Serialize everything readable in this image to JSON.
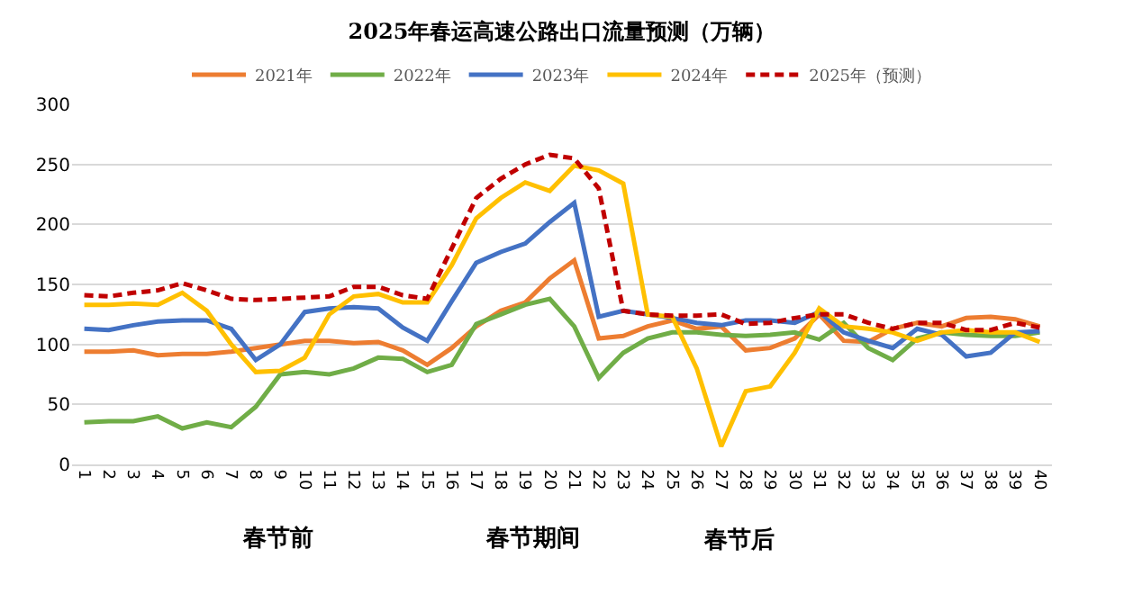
{
  "chart_data": {
    "type": "line",
    "title": "2025年春运高速公路出口流量预测（万辆）",
    "categories": [
      "1",
      "2",
      "3",
      "4",
      "5",
      "6",
      "7",
      "8",
      "9",
      "10",
      "11",
      "12",
      "13",
      "14",
      "15",
      "16",
      "17",
      "18",
      "19",
      "20",
      "21",
      "22",
      "23",
      "24",
      "25",
      "26",
      "27",
      "28",
      "29",
      "30",
      "31",
      "32",
      "33",
      "34",
      "35",
      "36",
      "37",
      "38",
      "39",
      "40"
    ],
    "series": [
      {
        "name": "2021年",
        "color": "#ed7d31",
        "values": [
          94,
          94,
          95,
          91,
          92,
          92,
          94,
          97,
          100,
          103,
          103,
          101,
          102,
          95,
          83,
          97,
          115,
          128,
          135,
          155,
          170,
          105,
          107,
          115,
          120,
          113,
          115,
          95,
          97,
          105,
          125,
          103,
          102,
          113,
          118,
          115,
          122,
          123,
          121,
          115
        ]
      },
      {
        "name": "2022年",
        "color": "#70ad47",
        "values": [
          35,
          36,
          36,
          40,
          30,
          35,
          31,
          48,
          75,
          77,
          75,
          80,
          89,
          88,
          77,
          83,
          117,
          125,
          133,
          138,
          115,
          72,
          93,
          105,
          110,
          110,
          108,
          107,
          108,
          110,
          104,
          118,
          97,
          87,
          105,
          110,
          108,
          107,
          107,
          110
        ]
      },
      {
        "name": "2023年",
        "color": "#4472c4",
        "values": [
          113,
          112,
          116,
          119,
          120,
          120,
          113,
          87,
          100,
          127,
          130,
          131,
          130,
          114,
          103,
          136,
          168,
          177,
          184,
          202,
          218,
          123,
          128,
          125,
          122,
          118,
          116,
          120,
          120,
          118,
          127,
          110,
          103,
          97,
          113,
          108,
          90,
          93,
          110,
          111
        ]
      },
      {
        "name": "2024年",
        "color": "#ffc000",
        "values": [
          133,
          133,
          134,
          133,
          143,
          128,
          100,
          77,
          78,
          89,
          125,
          140,
          142,
          135,
          135,
          166,
          205,
          222,
          235,
          228,
          249,
          245,
          234,
          125,
          123,
          80,
          15,
          61,
          65,
          93,
          130,
          115,
          113,
          110,
          103,
          110,
          112,
          110,
          110,
          102
        ]
      },
      {
        "name": "2025年（预测）",
        "color": "#c00000",
        "line_style": "dashed",
        "values": [
          141,
          140,
          143,
          145,
          151,
          145,
          138,
          137,
          138,
          139,
          140,
          148,
          148,
          141,
          138,
          180,
          222,
          238,
          250,
          258,
          255,
          230,
          128,
          125,
          124,
          124,
          125,
          117,
          118,
          122,
          125,
          125,
          118,
          113,
          118,
          118,
          112,
          112,
          118,
          114
        ]
      }
    ],
    "ylim": [
      0,
      300
    ],
    "yticks": [
      0,
      50,
      100,
      150,
      200,
      250,
      300
    ],
    "grid": "y",
    "legend": "top",
    "annotations": [
      "春节前",
      "春节期间",
      "春节后"
    ]
  }
}
